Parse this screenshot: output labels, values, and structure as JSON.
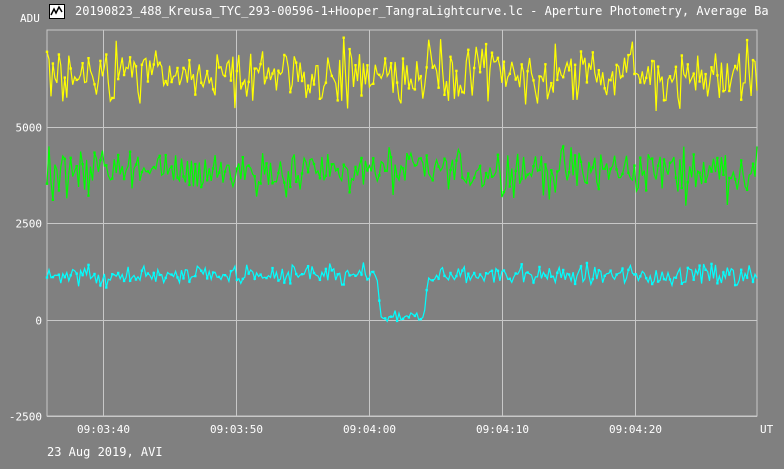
{
  "window": {
    "title": "20190823_488_Kreusa_TYC_293-00596-1+Hooper_TangraLightcurve.lc - Aperture Photometry, Average Ba",
    "icon": "light-curve-app-icon"
  },
  "footer": {
    "text": "23 Aug 2019, AVI"
  },
  "chart_data": {
    "type": "line",
    "ylabel": "ADU",
    "xunit": "UT",
    "ylim": [
      -2500,
      7500
    ],
    "yticks": [
      -2500,
      0,
      2500,
      5000
    ],
    "ytick_labels": [
      "-2500",
      "0",
      "2500",
      "5000"
    ],
    "xlim": [
      "09:03:35.8",
      "09:04:29.2"
    ],
    "xticks": [
      "09:03:40",
      "09:03:50",
      "09:04:00",
      "09:04:10",
      "09:04:20"
    ],
    "xtick_labels": [
      "09:03:40",
      "09:03:50",
      "09:04:00",
      "09:04:10",
      "09:04:20"
    ],
    "grid": true,
    "series": [
      {
        "color": "#ffff00",
        "mean": 6300,
        "noise": 380,
        "samples": 360
      },
      {
        "color": "#00ff00",
        "mean": 3850,
        "noise": 310,
        "samples": 360
      },
      {
        "color": "#00ffff",
        "mean": 1150,
        "noise": 130,
        "samples": 360,
        "event": {
          "start": "09:04:00.9",
          "end": "09:04:04.1",
          "level": 50,
          "ingress_from": "09:04:00.6",
          "egress_to": "09:04:04.5"
        }
      }
    ]
  }
}
